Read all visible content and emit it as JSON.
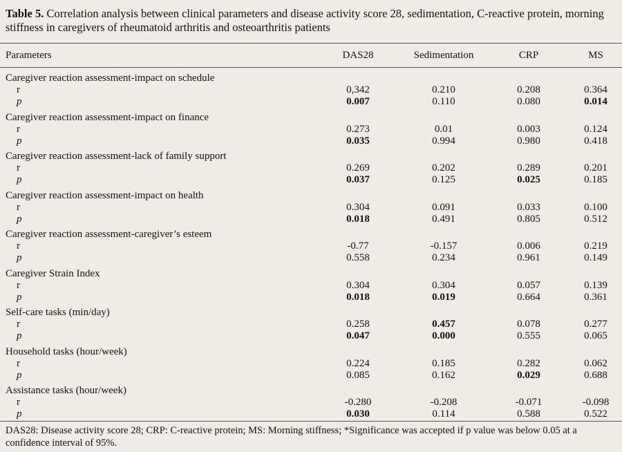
{
  "title": {
    "label": "Table 5.",
    "text": "Correlation analysis between clinical parameters and disease activity score 28, sedimentation, C-reactive protein, morning stiffness in caregivers of rheumatoid arthritis and osteoarthritis patients"
  },
  "table": {
    "columns": [
      "Parameters",
      "DAS28",
      "Sedimentation",
      "CRP",
      "MS"
    ],
    "groups": [
      {
        "name": "Caregiver reaction assessment-impact on schedule",
        "rows": [
          {
            "label": "r",
            "values": [
              "0,342",
              "0.210",
              "0.208",
              "0.364"
            ],
            "bold": [
              false,
              false,
              false,
              false
            ]
          },
          {
            "label": "p",
            "values": [
              "0.007",
              "0.110",
              "0.080",
              "0.014"
            ],
            "bold": [
              true,
              false,
              false,
              true
            ]
          }
        ]
      },
      {
        "name": "Caregiver reaction assessment-impact on finance",
        "rows": [
          {
            "label": "r",
            "values": [
              "0.273",
              "0.01",
              "0.003",
              "0.124"
            ],
            "bold": [
              false,
              false,
              false,
              false
            ]
          },
          {
            "label": "p",
            "values": [
              "0.035",
              "0.994",
              "0.980",
              "0.418"
            ],
            "bold": [
              true,
              false,
              false,
              false
            ]
          }
        ]
      },
      {
        "name": "Caregiver reaction assessment-lack of family support",
        "rows": [
          {
            "label": "r",
            "values": [
              "0.269",
              "0.202",
              "0.289",
              "0.201"
            ],
            "bold": [
              false,
              false,
              false,
              false
            ]
          },
          {
            "label": "p",
            "values": [
              "0.037",
              "0.125",
              "0.025",
              "0.185"
            ],
            "bold": [
              true,
              false,
              true,
              false
            ]
          }
        ]
      },
      {
        "name": "Caregiver reaction assessment-impact on health",
        "rows": [
          {
            "label": "r",
            "values": [
              "0.304",
              "0.091",
              "0.033",
              "0.100"
            ],
            "bold": [
              false,
              false,
              false,
              false
            ]
          },
          {
            "label": "p",
            "values": [
              "0.018",
              "0.491",
              "0.805",
              "0.512"
            ],
            "bold": [
              true,
              false,
              false,
              false
            ]
          }
        ]
      },
      {
        "name": "Caregiver reaction assessment-caregiver’s esteem",
        "rows": [
          {
            "label": "r",
            "values": [
              "-0.77",
              "-0.157",
              "0.006",
              "0.219"
            ],
            "bold": [
              false,
              false,
              false,
              false
            ]
          },
          {
            "label": "p",
            "values": [
              "0.558",
              "0.234",
              "0.961",
              "0.149"
            ],
            "bold": [
              false,
              false,
              false,
              false
            ]
          }
        ]
      },
      {
        "name": "Caregiver Strain Index",
        "rows": [
          {
            "label": "r",
            "values": [
              "0.304",
              "0.304",
              "0.057",
              "0.139"
            ],
            "bold": [
              false,
              false,
              false,
              false
            ]
          },
          {
            "label": "p",
            "values": [
              "0.018",
              "0.019",
              "0.664",
              "0.361"
            ],
            "bold": [
              true,
              true,
              false,
              false
            ]
          }
        ]
      },
      {
        "name": "Self-care tasks (min/day)",
        "rows": [
          {
            "label": "r",
            "values": [
              "0.258",
              "0.457",
              "0.078",
              "0.277"
            ],
            "bold": [
              false,
              true,
              false,
              false
            ]
          },
          {
            "label": "p",
            "values": [
              "0.047",
              "0.000",
              "0.555",
              "0.065"
            ],
            "bold": [
              true,
              true,
              false,
              false
            ]
          }
        ]
      },
      {
        "name": "Household tasks (hour/week)",
        "rows": [
          {
            "label": "r",
            "values": [
              "0.224",
              "0.185",
              "0.282",
              "0.062"
            ],
            "bold": [
              false,
              false,
              false,
              false
            ]
          },
          {
            "label": "p",
            "values": [
              "0.085",
              "0.162",
              "0.029",
              "0.688"
            ],
            "bold": [
              false,
              false,
              true,
              false
            ]
          }
        ]
      },
      {
        "name": "Assistance tasks (hour/week)",
        "rows": [
          {
            "label": "r",
            "values": [
              "-0.280",
              "-0.208",
              "-0.071",
              "-0.098"
            ],
            "bold": [
              false,
              false,
              false,
              false
            ]
          },
          {
            "label": "p",
            "values": [
              "0.030",
              "0.114",
              "0.588",
              "0.522"
            ],
            "bold": [
              true,
              false,
              false,
              false
            ]
          }
        ]
      }
    ]
  },
  "footnote": "DAS28: Disease activity score 28; CRP: C-reactive protein; MS: Morning stiffness; *Significance was accepted if p value was below 0.05 at a confidence interval of 95%."
}
